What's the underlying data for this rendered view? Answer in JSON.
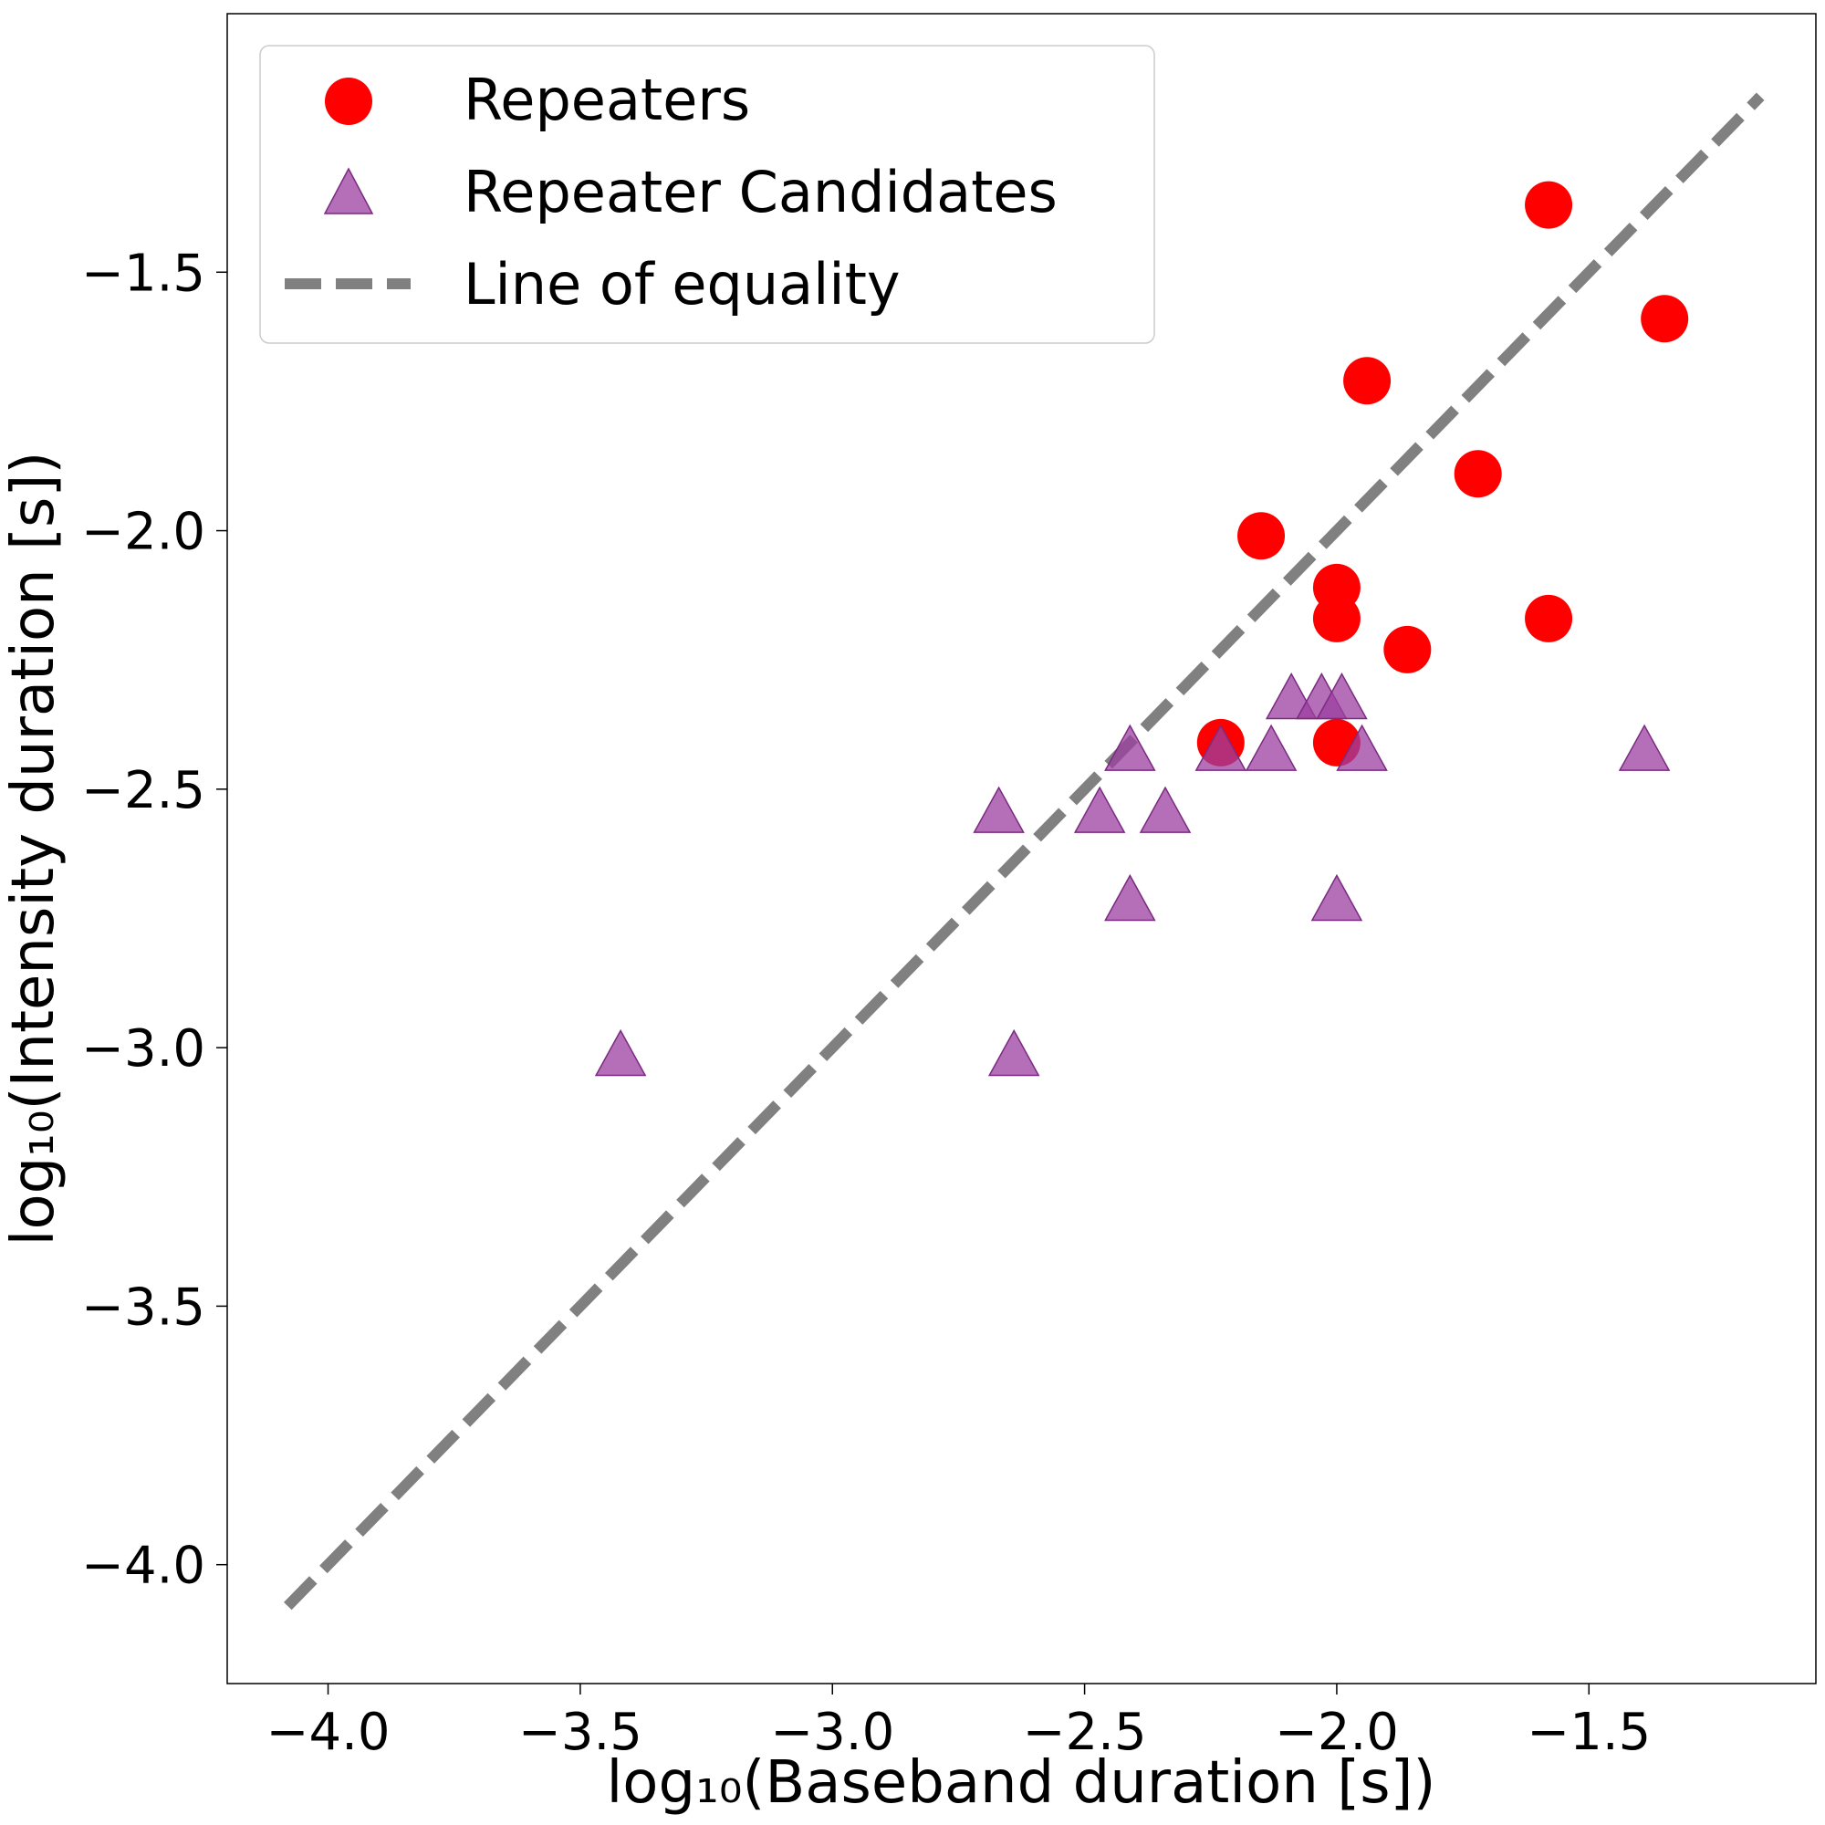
{
  "chart_data": {
    "type": "scatter",
    "title": "",
    "xlabel": "log₁₀(Baseband duration [s])",
    "ylabel": "log₁₀(Intensity duration [s])",
    "xlim": [
      -4.2,
      -1.05
    ],
    "ylim": [
      -4.23,
      -1.0
    ],
    "xticks": [
      -4.0,
      -3.5,
      -3.0,
      -2.5,
      -2.0,
      -1.5
    ],
    "xtick_labels": [
      "−4.0",
      "−3.5",
      "−3.0",
      "−2.5",
      "−2.0",
      "−1.5"
    ],
    "yticks": [
      -4.0,
      -3.5,
      -3.0,
      -2.5,
      -2.0,
      -1.5
    ],
    "ytick_labels": [
      "−4.0",
      "−3.5",
      "−3.0",
      "−2.5",
      "−2.0",
      "−1.5"
    ],
    "grid": false,
    "legend_position": "top-left",
    "series": [
      {
        "name": "Repeaters",
        "marker": "circle",
        "color": "#ff0000",
        "points": [
          [
            -1.58,
            -1.37
          ],
          [
            -1.35,
            -1.59
          ],
          [
            -1.94,
            -1.71
          ],
          [
            -1.72,
            -1.89
          ],
          [
            -2.15,
            -2.01
          ],
          [
            -2.0,
            -2.11
          ],
          [
            -2.0,
            -2.17
          ],
          [
            -1.58,
            -2.17
          ],
          [
            -1.86,
            -2.23
          ],
          [
            -2.23,
            -2.41
          ],
          [
            -2.0,
            -2.41
          ]
        ]
      },
      {
        "name": "Repeater Candidates",
        "marker": "triangle",
        "color": "#9c3fa0",
        "points": [
          [
            -2.09,
            -2.33
          ],
          [
            -2.03,
            -2.33
          ],
          [
            -1.99,
            -2.33
          ],
          [
            -2.41,
            -2.43
          ],
          [
            -2.23,
            -2.43
          ],
          [
            -2.13,
            -2.43
          ],
          [
            -1.95,
            -2.43
          ],
          [
            -1.39,
            -2.43
          ],
          [
            -2.67,
            -2.55
          ],
          [
            -2.47,
            -2.55
          ],
          [
            -2.34,
            -2.55
          ],
          [
            -2.41,
            -2.72
          ],
          [
            -2.0,
            -2.72
          ],
          [
            -3.42,
            -3.02
          ],
          [
            -2.64,
            -3.02
          ]
        ]
      },
      {
        "name": "Line of equality",
        "type": "line",
        "style": "dashed",
        "color": "#808080",
        "x": [
          -4.08,
          -1.16
        ],
        "y": [
          -4.08,
          -1.16
        ]
      }
    ]
  }
}
